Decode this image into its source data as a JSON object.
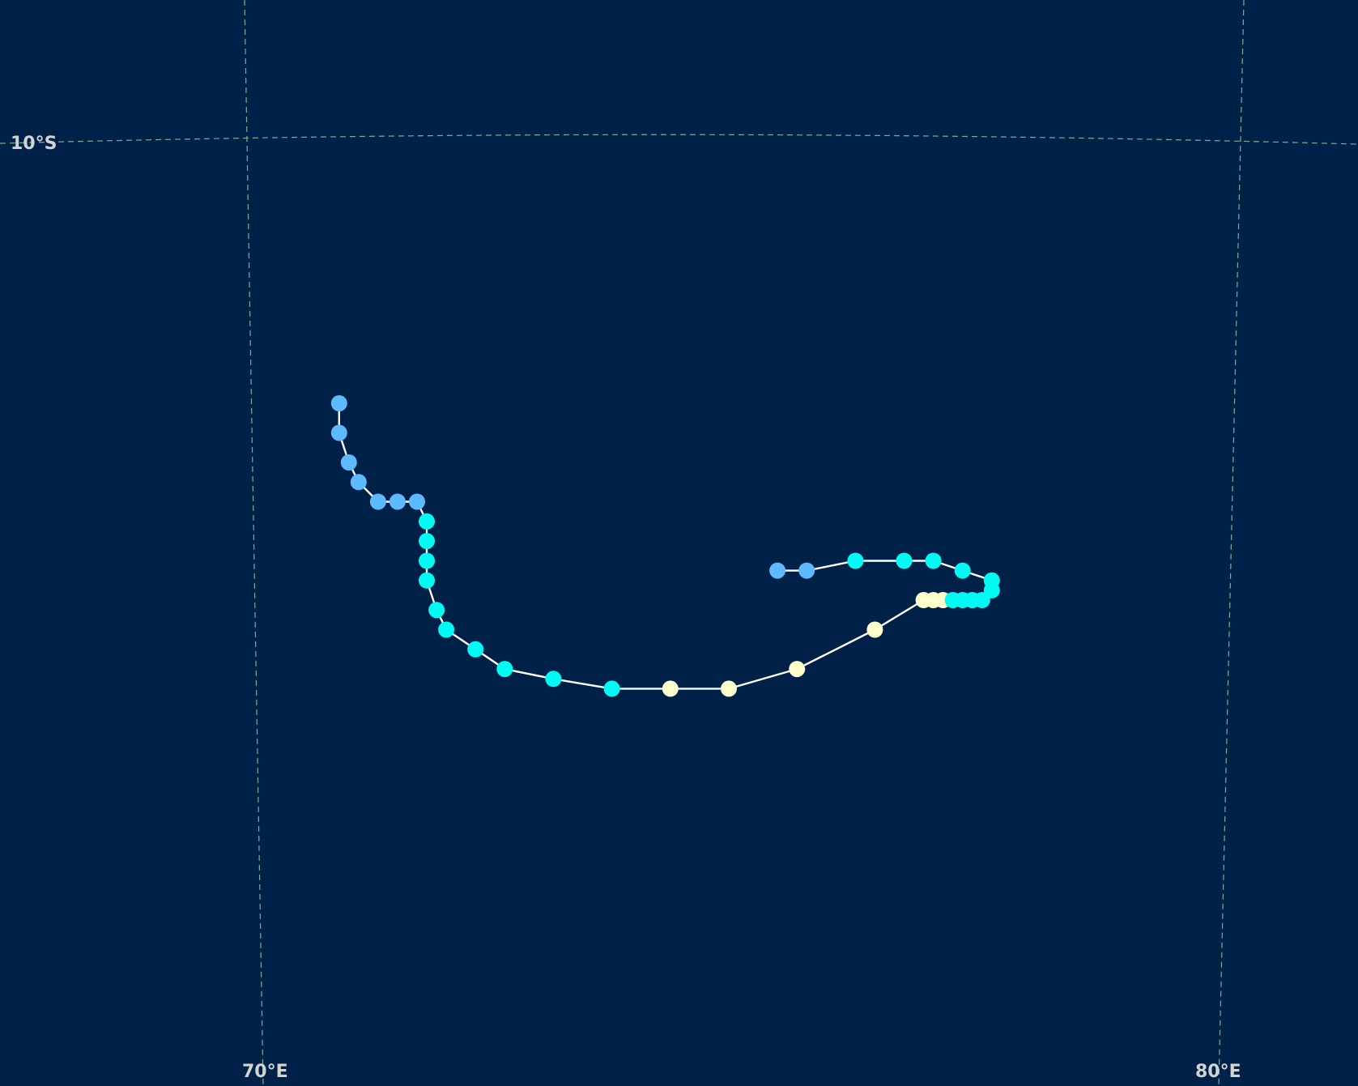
{
  "map": {
    "background_color": "#002147",
    "grid_color": "#6fb39a",
    "track_color": "#ffffff",
    "labels": {
      "lat_10s": "10°S",
      "lon_70e": "70°E",
      "lon_80e": "80°E"
    },
    "category_colors": {
      "weak": "#5ebaff",
      "moderate": "#00faf4",
      "strong": "#ffffcc"
    },
    "track_points": [
      {
        "lon": 70.9,
        "lat": -12.7,
        "category": "weak"
      },
      {
        "lon": 70.9,
        "lat": -13.0,
        "category": "weak"
      },
      {
        "lon": 71.0,
        "lat": -13.3,
        "category": "weak"
      },
      {
        "lon": 71.1,
        "lat": -13.5,
        "category": "weak"
      },
      {
        "lon": 71.3,
        "lat": -13.7,
        "category": "weak"
      },
      {
        "lon": 71.5,
        "lat": -13.7,
        "category": "weak"
      },
      {
        "lon": 71.7,
        "lat": -13.7,
        "category": "weak"
      },
      {
        "lon": 71.8,
        "lat": -13.9,
        "category": "moderate"
      },
      {
        "lon": 71.8,
        "lat": -14.1,
        "category": "moderate"
      },
      {
        "lon": 71.8,
        "lat": -14.3,
        "category": "moderate"
      },
      {
        "lon": 71.8,
        "lat": -14.5,
        "category": "moderate"
      },
      {
        "lon": 71.9,
        "lat": -14.8,
        "category": "moderate"
      },
      {
        "lon": 72.0,
        "lat": -15.0,
        "category": "moderate"
      },
      {
        "lon": 72.3,
        "lat": -15.2,
        "category": "moderate"
      },
      {
        "lon": 72.6,
        "lat": -15.4,
        "category": "moderate"
      },
      {
        "lon": 73.1,
        "lat": -15.5,
        "category": "moderate"
      },
      {
        "lon": 73.7,
        "lat": -15.6,
        "category": "moderate"
      },
      {
        "lon": 74.3,
        "lat": -15.6,
        "category": "strong"
      },
      {
        "lon": 74.9,
        "lat": -15.6,
        "category": "strong"
      },
      {
        "lon": 75.6,
        "lat": -15.4,
        "category": "strong"
      },
      {
        "lon": 76.4,
        "lat": -15.0,
        "category": "strong"
      },
      {
        "lon": 76.9,
        "lat": -14.7,
        "category": "strong"
      },
      {
        "lon": 77.0,
        "lat": -14.7,
        "category": "strong"
      },
      {
        "lon": 77.1,
        "lat": -14.7,
        "category": "strong"
      },
      {
        "lon": 77.2,
        "lat": -14.7,
        "category": "moderate"
      },
      {
        "lon": 77.3,
        "lat": -14.7,
        "category": "moderate"
      },
      {
        "lon": 77.4,
        "lat": -14.7,
        "category": "moderate"
      },
      {
        "lon": 77.5,
        "lat": -14.7,
        "category": "moderate"
      },
      {
        "lon": 77.6,
        "lat": -14.6,
        "category": "moderate"
      },
      {
        "lon": 77.6,
        "lat": -14.5,
        "category": "moderate"
      },
      {
        "lon": 77.3,
        "lat": -14.4,
        "category": "moderate"
      },
      {
        "lon": 77.0,
        "lat": -14.3,
        "category": "moderate"
      },
      {
        "lon": 76.7,
        "lat": -14.3,
        "category": "moderate"
      },
      {
        "lon": 76.2,
        "lat": -14.3,
        "category": "moderate"
      },
      {
        "lon": 75.7,
        "lat": -14.4,
        "category": "weak"
      },
      {
        "lon": 75.4,
        "lat": -14.4,
        "category": "weak"
      }
    ]
  }
}
